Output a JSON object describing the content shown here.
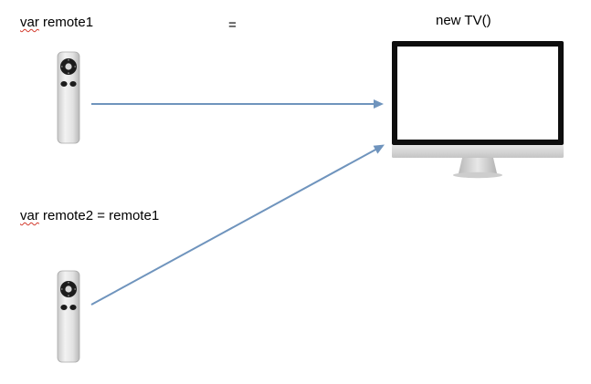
{
  "labels": {
    "remote1_decl": {
      "keyword": "var",
      "rest": " remote1"
    },
    "equals": "=",
    "new_tv": "new TV()",
    "remote2_decl": {
      "keyword": "var",
      "rest": " remote2 = remote1"
    }
  },
  "icons": {
    "remote": "apple-remote-icon",
    "tv": "imac-monitor-icon",
    "arrow": "arrow-right-icon"
  },
  "colors": {
    "arrow": "#6f94bd",
    "spellcheck_underline": "#d33a2c"
  }
}
